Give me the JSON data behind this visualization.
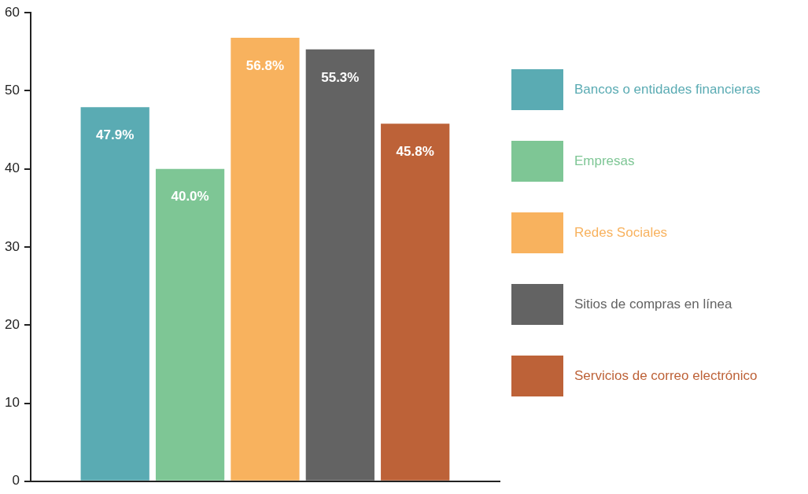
{
  "chart_data": {
    "type": "bar",
    "categories": [
      null
    ],
    "series": [
      {
        "name": "Bancos o entidades financieras",
        "color": "#5aabb3",
        "values": [
          47.9
        ],
        "value_labels": [
          "47.9%"
        ]
      },
      {
        "name": "Empresas",
        "color": "#7ec695",
        "values": [
          40.0
        ],
        "value_labels": [
          "40.0%"
        ]
      },
      {
        "name": "Redes Sociales",
        "color": "#f8b25e",
        "values": [
          56.8
        ],
        "value_labels": [
          "56.8%"
        ]
      },
      {
        "name": "Sitios de compras en línea",
        "color": "#636363",
        "values": [
          55.3
        ],
        "value_labels": [
          "55.3%"
        ]
      },
      {
        "name": "Servicios de correo electrónico",
        "color": "#bd6238",
        "values": [
          45.8
        ],
        "value_labels": [
          "45.8%"
        ]
      }
    ],
    "ylim": [
      0,
      60
    ],
    "yticks": [
      0,
      10,
      20,
      30,
      40,
      50,
      60
    ],
    "grid": false,
    "legend": "right",
    "tick_labels": "y"
  }
}
